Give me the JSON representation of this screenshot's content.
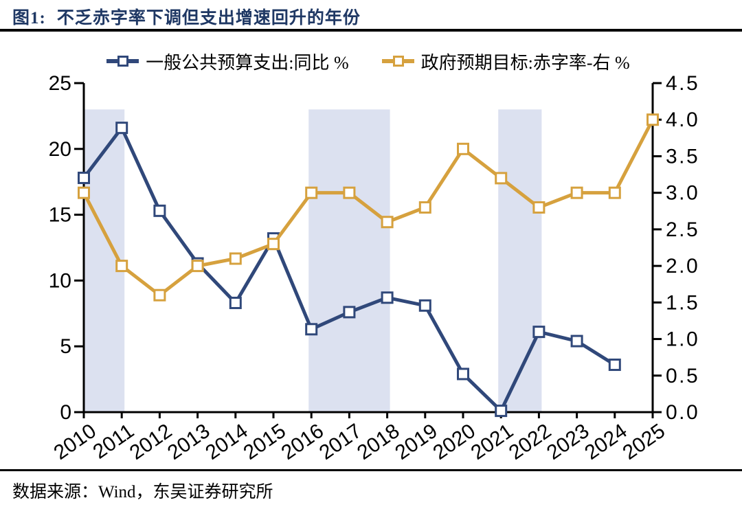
{
  "header": {
    "figure_label": "图1:",
    "title": "不乏赤字率下调但支出增速回升的年份"
  },
  "source": "数据来源：Wind，东吴证券研究所",
  "chart_data": {
    "type": "line",
    "title": "不乏赤字率下调但支出增速回升的年份",
    "x": [
      2010,
      2011,
      2012,
      2013,
      2014,
      2015,
      2016,
      2017,
      2018,
      2019,
      2020,
      2021,
      2022,
      2023,
      2024,
      2025
    ],
    "x_ticks": [
      "2010",
      "2011",
      "2012",
      "2013",
      "2014",
      "2015",
      "2016",
      "2017",
      "2018",
      "2019",
      "2020",
      "2021",
      "2022",
      "2023",
      "2024",
      "2025"
    ],
    "series": [
      {
        "name": "一般公共预算支出:同比 %",
        "axis": "left",
        "color": "#30487A",
        "marker": "hollow-square",
        "values": [
          17.8,
          21.6,
          15.3,
          11.3,
          8.3,
          13.2,
          6.3,
          7.6,
          8.7,
          8.1,
          2.9,
          0.1,
          6.1,
          5.4,
          3.6,
          null
        ]
      },
      {
        "name": "政府预期目标:赤字率-右 %",
        "axis": "right",
        "color": "#D6A13E",
        "marker": "hollow-square",
        "values": [
          3.0,
          2.0,
          1.6,
          2.0,
          2.1,
          2.3,
          3.0,
          3.0,
          2.6,
          2.8,
          3.6,
          3.2,
          2.8,
          3.0,
          3.0,
          4.0
        ]
      }
    ],
    "left_axis": {
      "min": 0,
      "max": 25,
      "ticks": [
        "0",
        "5",
        "10",
        "15",
        "20",
        "25"
      ]
    },
    "right_axis": {
      "min": 0,
      "max": 4.5,
      "ticks": [
        "0.0",
        "0.5",
        "1.0",
        "1.5",
        "2.0",
        "2.5",
        "3.0",
        "3.5",
        "4.0",
        "4.5"
      ]
    },
    "highlight_bands": [
      [
        2010,
        2011
      ],
      [
        2016,
        2018
      ],
      [
        2021,
        2022
      ]
    ],
    "band_color": "#DCE1F0",
    "band_top_left_value": 23,
    "legend_position": "top",
    "grid": false
  }
}
